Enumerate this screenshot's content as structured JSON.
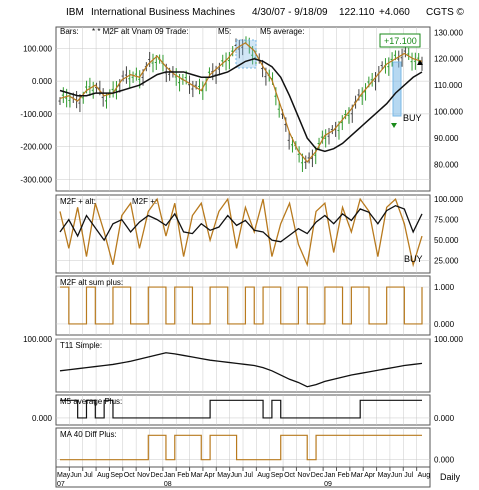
{
  "header": {
    "ticker": "IBM",
    "company": "International Business Machines",
    "date_range": "4/30/07 - 9/18/09",
    "price": "122.110",
    "change": "+4.060",
    "brand": "CGTS ©"
  },
  "colors": {
    "orange": "#b87a1e",
    "green": "#2f9a2f",
    "black": "#111111",
    "highlight": "#7ab8e6",
    "grid": "#c8c8c8",
    "annotation_green": "#1a8a1a"
  },
  "footer": {
    "periodicity": "Daily",
    "month_labels": [
      "May",
      "Jun",
      "Jul",
      "Aug",
      "Sep",
      "Oct",
      "Nov",
      "Dec",
      "Jan",
      "Feb",
      "Mar",
      "Apr",
      "May",
      "Jun",
      "Jul",
      "Aug",
      "Sep",
      "Oct",
      "Nov",
      "Dec",
      "Jan",
      "Feb",
      "Mar",
      "Apr",
      "May",
      "Jun",
      "Jul",
      "Aug"
    ],
    "year_labels": [
      "07",
      "08",
      "09"
    ]
  },
  "chart_data": [
    {
      "type": "line",
      "panel": "main",
      "legend": [
        "Bars:",
        "* * M2F alt Vnam 09 Trade:",
        "M5:",
        "M5 average:"
      ],
      "left_ticks": [
        "100.000",
        "0.000",
        "-100.000",
        "-200.000",
        "-300.000"
      ],
      "right_ticks": [
        "130.000",
        "120.000",
        "110.000",
        "100.000",
        "90.000",
        "80.000"
      ],
      "price_range": [
        70,
        132
      ],
      "osc_range": [
        -335,
        165
      ],
      "annotations": {
        "gain_label": "+17.100",
        "buy_label": "BUY"
      },
      "series": [
        {
          "name": "Bars",
          "values": [
            104,
            106,
            103,
            108,
            110,
            105,
            107,
            112,
            114,
            112,
            118,
            120,
            116,
            113,
            112,
            110,
            108,
            114,
            116,
            120,
            124,
            126,
            122,
            116,
            112,
            100,
            90,
            84,
            80,
            85,
            91,
            92,
            96,
            100,
            106,
            110,
            114,
            118,
            120,
            122,
            120,
            118
          ]
        },
        {
          "name": "M5",
          "values": [
            105,
            106,
            104,
            108,
            110,
            106,
            107,
            112,
            114,
            113,
            118,
            121,
            117,
            114,
            112,
            110,
            108,
            114,
            117,
            120,
            124,
            126,
            123,
            117,
            112,
            102,
            92,
            85,
            81,
            85,
            91,
            93,
            97,
            101,
            106,
            110,
            114,
            118,
            120,
            122,
            120,
            119
          ]
        },
        {
          "name": "M5 average",
          "values": [
            108,
            107,
            106,
            106,
            107,
            107,
            107,
            108,
            109,
            110,
            112,
            114,
            115,
            115,
            115,
            114,
            113,
            113,
            114,
            115,
            117,
            119,
            120,
            119,
            117,
            113,
            106,
            98,
            90,
            86,
            85,
            86,
            88,
            91,
            94,
            97,
            100,
            103,
            107,
            110,
            113,
            115
          ]
        }
      ]
    },
    {
      "type": "line",
      "panel": "osc",
      "legend": [
        "M2F + alt:",
        "M2F +:"
      ],
      "ticks": [
        "100.000",
        "75.000",
        "50.000",
        "25.000"
      ],
      "ylim": [
        10,
        105
      ],
      "annotations": {
        "buy_label": "BUY"
      },
      "series": [
        {
          "name": "M2F + alt",
          "values": [
            85,
            40,
            90,
            30,
            95,
            60,
            20,
            80,
            95,
            40,
            85,
            100,
            55,
            95,
            30,
            80,
            95,
            50,
            85,
            100,
            40,
            90,
            60,
            100,
            30,
            70,
            95,
            45,
            20,
            85,
            95,
            35,
            90,
            60,
            100,
            85,
            30,
            90,
            100,
            70,
            20,
            55
          ]
        },
        {
          "name": "M2F +",
          "values": [
            60,
            75,
            55,
            80,
            65,
            50,
            70,
            75,
            60,
            72,
            80,
            75,
            68,
            82,
            60,
            58,
            70,
            62,
            66,
            80,
            68,
            74,
            62,
            60,
            50,
            48,
            56,
            64,
            58,
            72,
            80,
            70,
            82,
            74,
            88,
            84,
            70,
            86,
            92,
            88,
            60,
            82
          ]
        }
      ]
    },
    {
      "type": "line",
      "panel": "sum",
      "legend": [
        "M2F alt sum plus:"
      ],
      "ticks": [
        "1.000",
        "0.000"
      ],
      "ylim": [
        -0.3,
        1.3
      ],
      "series": [
        {
          "name": "M2F alt sum plus",
          "values": [
            1,
            0,
            0,
            1,
            0,
            0,
            1,
            1,
            0,
            0,
            1,
            1,
            0,
            1,
            1,
            0,
            0,
            1,
            1,
            0,
            0,
            1,
            0,
            1,
            1,
            0,
            0,
            1,
            0,
            0,
            1,
            1,
            0,
            1,
            1,
            0,
            0,
            1,
            1,
            0,
            0,
            1
          ]
        }
      ]
    },
    {
      "type": "line",
      "panel": "t11",
      "legend": [
        "T11 Simple:"
      ],
      "ticks": [
        "100.000"
      ],
      "ylim": [
        0,
        100
      ],
      "series": [
        {
          "name": "T11 Simple",
          "values": [
            40,
            42,
            44,
            46,
            48,
            50,
            52,
            55,
            58,
            62,
            66,
            70,
            74,
            72,
            69,
            66,
            63,
            60,
            58,
            56,
            54,
            52,
            50,
            46,
            40,
            32,
            24,
            18,
            10,
            14,
            20,
            24,
            28,
            32,
            35,
            38,
            41,
            44,
            47,
            50,
            52,
            54
          ]
        }
      ]
    },
    {
      "type": "line",
      "panel": "m5avg",
      "legend": [
        "M5 average Plus:"
      ],
      "ticks": [
        "0.000"
      ],
      "ylim": [
        -0.4,
        1.3
      ],
      "series": [
        {
          "name": "M5 average Plus",
          "values": [
            1,
            1,
            0,
            1,
            0,
            1,
            0,
            0,
            0,
            0,
            0,
            0,
            0,
            0,
            0,
            0,
            0,
            1,
            1,
            1,
            1,
            1,
            1,
            0,
            1,
            0,
            0,
            0,
            0,
            0,
            0,
            0,
            0,
            0,
            1,
            1,
            1,
            1,
            1,
            1,
            1,
            1
          ]
        }
      ]
    },
    {
      "type": "line",
      "panel": "ma40",
      "legend": [
        "MA 40 Diff Plus:"
      ],
      "ticks": [
        "0.000"
      ],
      "ylim": [
        -0.3,
        1.3
      ],
      "series": [
        {
          "name": "MA 40 Diff Plus",
          "values": [
            0,
            0,
            0,
            0,
            0,
            0,
            0,
            0,
            0,
            0,
            1,
            1,
            0,
            1,
            1,
            1,
            0,
            1,
            1,
            1,
            0,
            0,
            0,
            0,
            0,
            1,
            1,
            1,
            0,
            1,
            1,
            1,
            1,
            1,
            1,
            1,
            1,
            1,
            1,
            1,
            1,
            1
          ]
        }
      ]
    }
  ]
}
